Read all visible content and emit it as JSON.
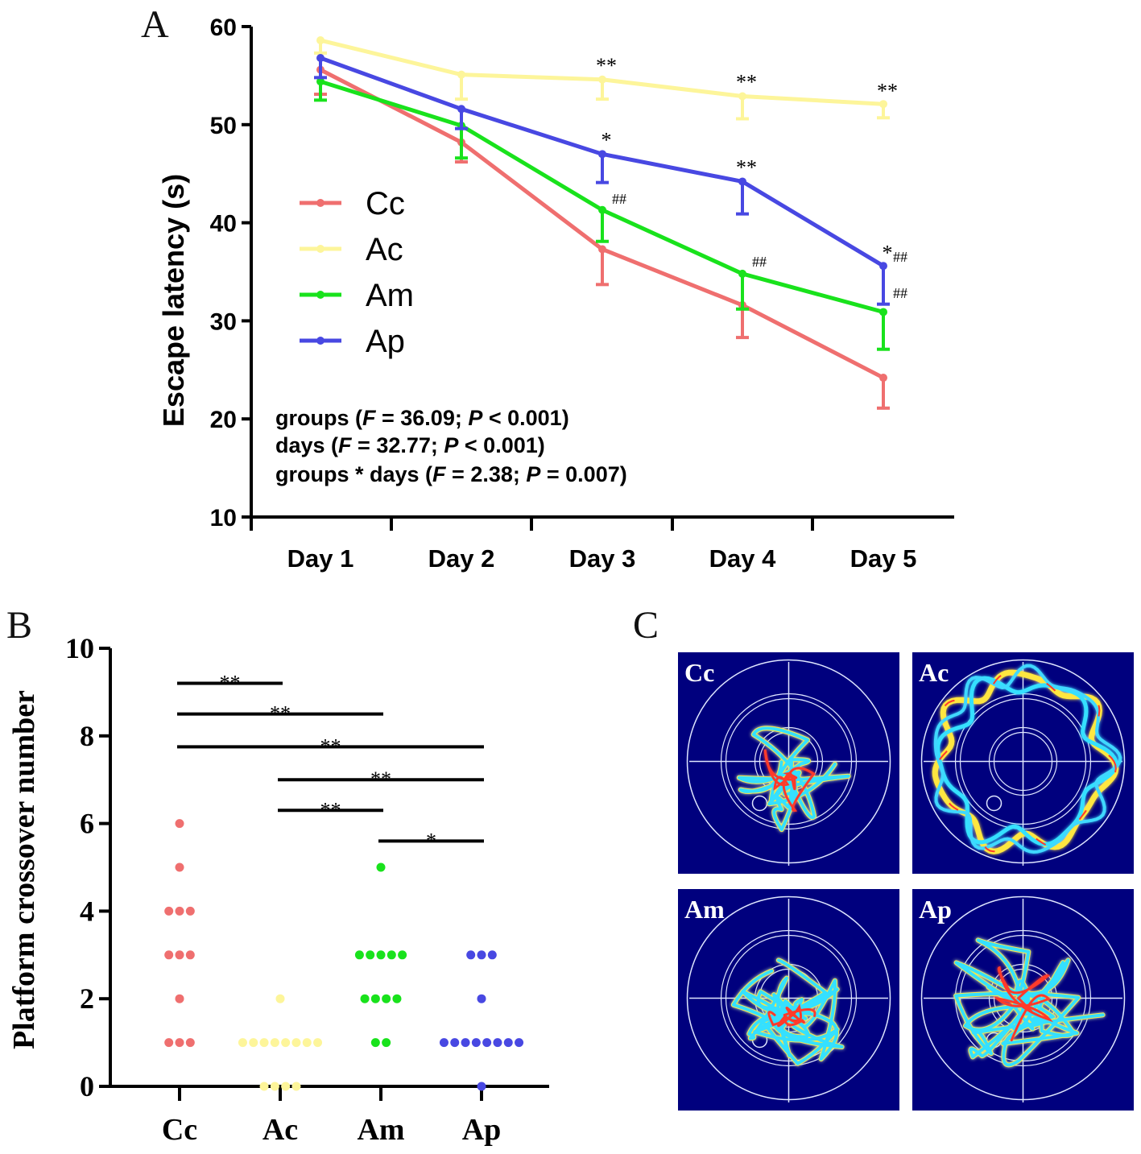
{
  "panel_labels": {
    "a": "A",
    "b": "B",
    "c": "C"
  },
  "colors": {
    "Cc": "#ef6f6f",
    "Ac": "#fdf59a",
    "Am": "#19e21c",
    "Ap": "#4848e2",
    "heatmap_bg": "#00007e"
  },
  "chart_data": [
    {
      "type": "line",
      "panel": "A",
      "xlabel": "",
      "ylabel": "Escape latency (s)",
      "categories": [
        "Day 1",
        "Day 2",
        "Day 3",
        "Day 4",
        "Day 5"
      ],
      "ylim": [
        10,
        60
      ],
      "yticks": [
        10,
        20,
        30,
        40,
        50,
        60
      ],
      "series": [
        {
          "name": "Cc",
          "color": "#ef6f6f",
          "values": [
            55.6,
            48.2,
            37.3,
            31.6,
            24.2
          ],
          "err": [
            2.5,
            2.0,
            3.6,
            3.3,
            3.1
          ]
        },
        {
          "name": "Ac",
          "color": "#fdf59a",
          "values": [
            58.6,
            55.1,
            54.6,
            52.9,
            52.1
          ],
          "err": [
            1.3,
            2.5,
            2.0,
            2.3,
            1.4
          ]
        },
        {
          "name": "Am",
          "color": "#19e21c",
          "values": [
            54.4,
            49.9,
            41.3,
            34.8,
            30.9
          ],
          "err": [
            1.9,
            3.3,
            3.2,
            3.6,
            3.8
          ]
        },
        {
          "name": "Ap",
          "color": "#4848e2",
          "values": [
            56.8,
            51.6,
            47.0,
            44.2,
            35.6
          ],
          "err": [
            2.0,
            2.0,
            2.9,
            3.3,
            3.9
          ]
        }
      ],
      "annotations": [
        {
          "text": "**",
          "day": 3,
          "value": 55.0
        },
        {
          "text": "**",
          "day": 4,
          "value": 53.3
        },
        {
          "text": "**",
          "day": 5,
          "value": 52.4
        },
        {
          "text": "*",
          "day": 3,
          "value": 47.4
        },
        {
          "text": "**",
          "day": 4,
          "value": 44.6
        },
        {
          "text": "*",
          "day": 5,
          "value": 35.9
        },
        {
          "text": "##",
          "day": 3,
          "value": 41.6
        },
        {
          "text": "##",
          "day": 4,
          "value": 35.2
        },
        {
          "text": "##",
          "day": 5,
          "value": 35.7
        },
        {
          "text": "##",
          "day": 5,
          "value": 32.0
        }
      ],
      "stats": [
        {
          "pre": "groups (",
          "f_label": "F",
          "f_val": " = 36.09; ",
          "p_label": "P",
          "p_val": " < 0.001)"
        },
        {
          "pre": "days (",
          "f_label": "F",
          "f_val": " = 32.77; ",
          "p_label": "P",
          "p_val": " < 0.001)"
        },
        {
          "pre": "groups * days (",
          "f_label": "F",
          "f_val": " = 2.38; ",
          "p_label": "P",
          "p_val": " = 0.007)"
        }
      ],
      "legend": [
        "Cc",
        "Ac",
        "Am",
        "Ap"
      ],
      "legend_position": "center-left"
    },
    {
      "type": "scatter",
      "panel": "B",
      "xlabel": "",
      "ylabel": "Platform crossover number",
      "categories": [
        "Cc",
        "Ac",
        "Am",
        "Ap"
      ],
      "ylim": [
        0,
        10
      ],
      "yticks": [
        0,
        2,
        4,
        6,
        8,
        10
      ],
      "groups": [
        {
          "name": "Cc",
          "color": "#ef6f6f",
          "values": [
            1,
            1,
            1,
            2,
            3,
            3,
            3,
            4,
            4,
            4,
            5,
            6
          ]
        },
        {
          "name": "Ac",
          "color": "#fdf59a",
          "values": [
            0,
            0,
            0,
            0,
            1,
            1,
            1,
            1,
            1,
            1,
            1,
            1,
            2
          ]
        },
        {
          "name": "Am",
          "color": "#19e21c",
          "values": [
            1,
            1,
            2,
            2,
            2,
            2,
            3,
            3,
            3,
            3,
            3,
            5
          ]
        },
        {
          "name": "Ap",
          "color": "#4848e2",
          "values": [
            0,
            1,
            1,
            1,
            1,
            1,
            1,
            1,
            1,
            2,
            3,
            3,
            3
          ]
        }
      ],
      "significance": [
        {
          "from": "Cc",
          "to": "Ac",
          "level": 9.2,
          "label": "**"
        },
        {
          "from": "Cc",
          "to": "Am",
          "level": 8.5,
          "label": "**"
        },
        {
          "from": "Cc",
          "to": "Ap",
          "level": 7.75,
          "label": "**"
        },
        {
          "from": "Ac",
          "to": "Ap",
          "level": 7.0,
          "label": "**"
        },
        {
          "from": "Ac",
          "to": "Am",
          "level": 6.3,
          "label": "**"
        },
        {
          "from": "Am",
          "to": "Ap",
          "level": 5.6,
          "label": "*"
        }
      ]
    }
  ],
  "heatmaps": [
    {
      "label": "Cc"
    },
    {
      "label": "Ac"
    },
    {
      "label": "Am"
    },
    {
      "label": "Ap"
    }
  ]
}
